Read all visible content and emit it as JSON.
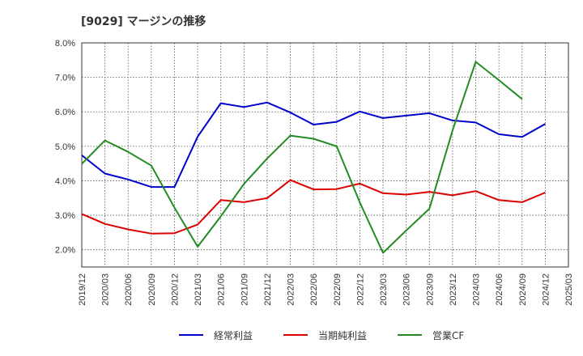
{
  "chart_data": {
    "type": "line",
    "title": "[9029]  マージンの推移",
    "x": [
      "2019/12",
      "2020/03",
      "2020/06",
      "2020/09",
      "2020/12",
      "2021/03",
      "2021/06",
      "2021/09",
      "2021/12",
      "2022/03",
      "2022/06",
      "2022/09",
      "2022/12",
      "2023/03",
      "2023/06",
      "2023/09",
      "2023/12",
      "2024/03",
      "2024/06",
      "2024/09",
      "2024/12",
      "2025/03"
    ],
    "yticks": [
      "2.0%",
      "3.0%",
      "4.0%",
      "5.0%",
      "6.0%",
      "7.0%",
      "8.0%"
    ],
    "ylim": [
      1.5,
      8.0
    ],
    "grid": true,
    "legend_position": "bottom",
    "series": [
      {
        "name": "経常利益",
        "color": "#0000cc",
        "values": [
          4.74,
          4.21,
          4.04,
          3.82,
          3.82,
          5.28,
          6.25,
          6.14,
          6.27,
          5.98,
          5.63,
          5.71,
          6.01,
          5.82,
          5.89,
          5.96,
          5.75,
          5.69,
          5.35,
          5.27,
          5.65,
          null
        ]
      },
      {
        "name": "当期純利益",
        "color": "#dd0000",
        "values": [
          3.04,
          2.75,
          2.59,
          2.47,
          2.48,
          2.73,
          3.44,
          3.38,
          3.5,
          4.02,
          3.75,
          3.76,
          3.92,
          3.64,
          3.6,
          3.68,
          3.58,
          3.7,
          3.44,
          3.38,
          3.66,
          null
        ]
      },
      {
        "name": "営業CF",
        "color": "#228b22",
        "values": [
          4.49,
          5.17,
          4.84,
          4.44,
          3.22,
          2.09,
          2.97,
          3.91,
          4.65,
          5.31,
          5.22,
          5.0,
          3.37,
          1.91,
          2.56,
          3.19,
          5.46,
          7.45,
          6.92,
          6.37,
          null,
          null
        ]
      }
    ]
  }
}
